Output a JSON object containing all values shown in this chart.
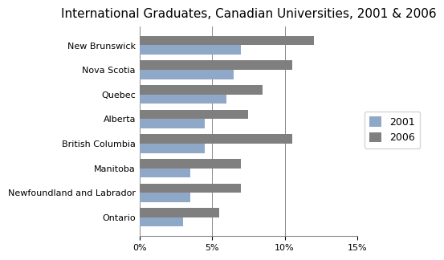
{
  "title": "International Graduates, Canadian Universities, 2001 & 2006",
  "categories": [
    "New Brunswick",
    "Nova Scotia",
    "Quebec",
    "Alberta",
    "British Columbia",
    "Manitoba",
    "Newfoundland and Labrador",
    "Ontario"
  ],
  "values_2001": [
    7.0,
    6.5,
    6.0,
    4.5,
    4.5,
    3.5,
    3.5,
    3.0
  ],
  "values_2006": [
    12.0,
    10.5,
    8.5,
    7.5,
    10.5,
    7.0,
    7.0,
    5.5
  ],
  "color_2001": "#8fa8c8",
  "color_2006": "#7f7f7f",
  "legend_labels": [
    "2001",
    "2006"
  ],
  "xlim": [
    0,
    15
  ],
  "xticks": [
    0,
    5,
    10,
    15
  ],
  "xticklabels": [
    "0%",
    "5%",
    "10%",
    "15%"
  ],
  "title_fontsize": 11,
  "tick_fontsize": 8,
  "bar_height": 0.38
}
